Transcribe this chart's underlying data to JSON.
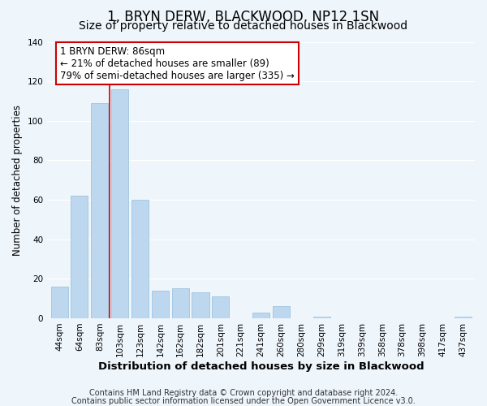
{
  "title": "1, BRYN DERW, BLACKWOOD, NP12 1SN",
  "subtitle": "Size of property relative to detached houses in Blackwood",
  "xlabel": "Distribution of detached houses by size in Blackwood",
  "ylabel": "Number of detached properties",
  "bar_labels": [
    "44sqm",
    "64sqm",
    "83sqm",
    "103sqm",
    "123sqm",
    "142sqm",
    "162sqm",
    "182sqm",
    "201sqm",
    "221sqm",
    "241sqm",
    "260sqm",
    "280sqm",
    "299sqm",
    "319sqm",
    "339sqm",
    "358sqm",
    "378sqm",
    "398sqm",
    "417sqm",
    "437sqm"
  ],
  "bar_values": [
    16,
    62,
    109,
    116,
    60,
    14,
    15,
    13,
    11,
    0,
    3,
    6,
    0,
    1,
    0,
    0,
    0,
    0,
    0,
    0,
    1
  ],
  "bar_color": "#bdd7ee",
  "bar_edge_color": "#9dc4e0",
  "marker_label": "1 BRYN DERW: 86sqm",
  "annotation_line1": "← 21% of detached houses are smaller (89)",
  "annotation_line2": "79% of semi-detached houses are larger (335) →",
  "annotation_box_color": "#ffffff",
  "annotation_box_edge": "#cc0000",
  "marker_line_color": "#cc0000",
  "ylim": [
    0,
    140
  ],
  "yticks": [
    0,
    20,
    40,
    60,
    80,
    100,
    120,
    140
  ],
  "footnote1": "Contains HM Land Registry data © Crown copyright and database right 2024.",
  "footnote2": "Contains public sector information licensed under the Open Government Licence v3.0.",
  "background_color": "#eef5fb",
  "grid_color": "#ffffff",
  "title_fontsize": 12,
  "subtitle_fontsize": 10,
  "xlabel_fontsize": 9.5,
  "ylabel_fontsize": 8.5,
  "tick_fontsize": 7.5,
  "annotation_fontsize": 8.5,
  "footnote_fontsize": 7
}
